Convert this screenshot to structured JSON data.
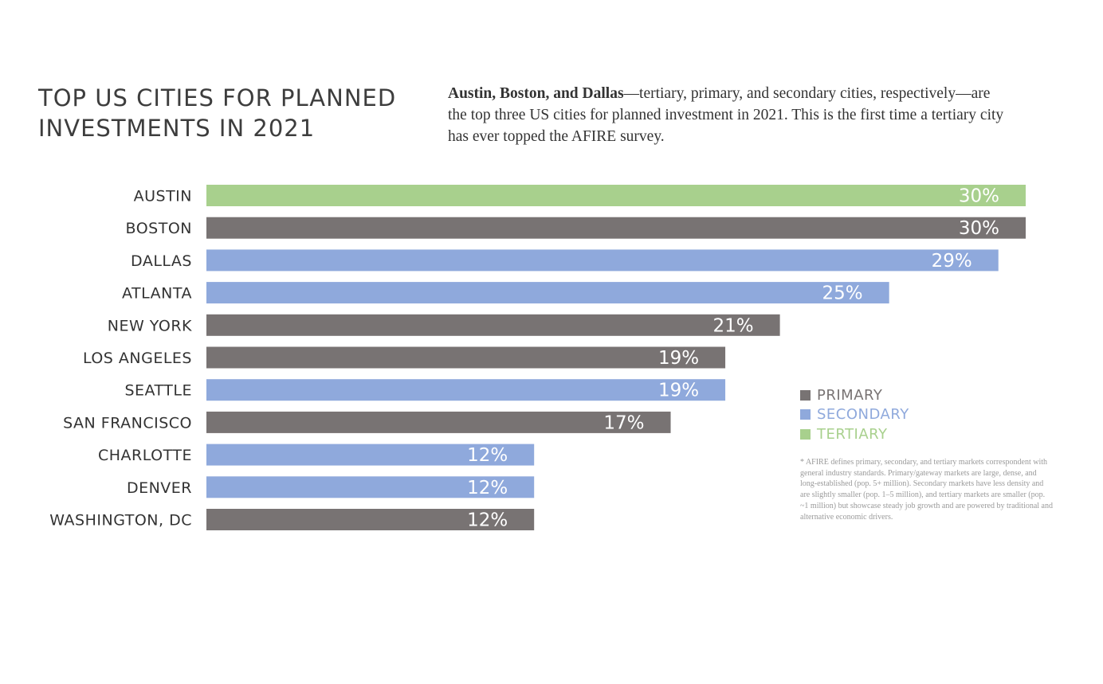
{
  "title_lines": [
    "TOP US CITIES FOR PLANNED",
    "INVESTMENTS IN 2021"
  ],
  "intro": {
    "bold": "Austin, Boston, and Dallas",
    "text": "—tertiary, primary, and secondary cities, respectively—are the top three US cities for planned investment in 2021. This is the first time a tertiary city has ever topped the AFIRE survey."
  },
  "legend": [
    {
      "label": "PRIMARY",
      "color": "#787373"
    },
    {
      "label": "SECONDARY",
      "color": "#8fa9dc"
    },
    {
      "label": "TERTIARY",
      "color": "#a8d08d"
    }
  ],
  "footnote": "* AFIRE defines primary, secondary, and tertiary markets correspondent with general industry standards. Primary/gateway markets are large, dense, and long-established (pop. 5+ million). Secondary markets have less density and are slightly smaller (pop. 1–5 million), and tertiary markets are smaller (pop. ~1 million) but showcase steady job growth and are powered by traditional and alternative economic drivers.",
  "chart_data": {
    "type": "bar",
    "orientation": "horizontal",
    "categories": [
      "AUSTIN",
      "BOSTON",
      "DALLAS",
      "ATLANTA",
      "NEW YORK",
      "LOS ANGELES",
      "SEATTLE",
      "SAN FRANCISCO",
      "CHARLOTTE",
      "DENVER",
      "WASHINGTON, DC"
    ],
    "values": [
      30,
      30,
      29,
      25,
      21,
      19,
      19,
      17,
      12,
      12,
      12
    ],
    "labels": [
      "30%",
      "30%",
      "29%",
      "25%",
      "21%",
      "19%",
      "19%",
      "17%",
      "12%",
      "12%",
      "12%"
    ],
    "market_type": [
      "TERTIARY",
      "PRIMARY",
      "SECONDARY",
      "SECONDARY",
      "PRIMARY",
      "PRIMARY",
      "SECONDARY",
      "PRIMARY",
      "SECONDARY",
      "SECONDARY",
      "PRIMARY"
    ],
    "unit": "%",
    "grid": false,
    "legend_position": "bottom-right"
  }
}
